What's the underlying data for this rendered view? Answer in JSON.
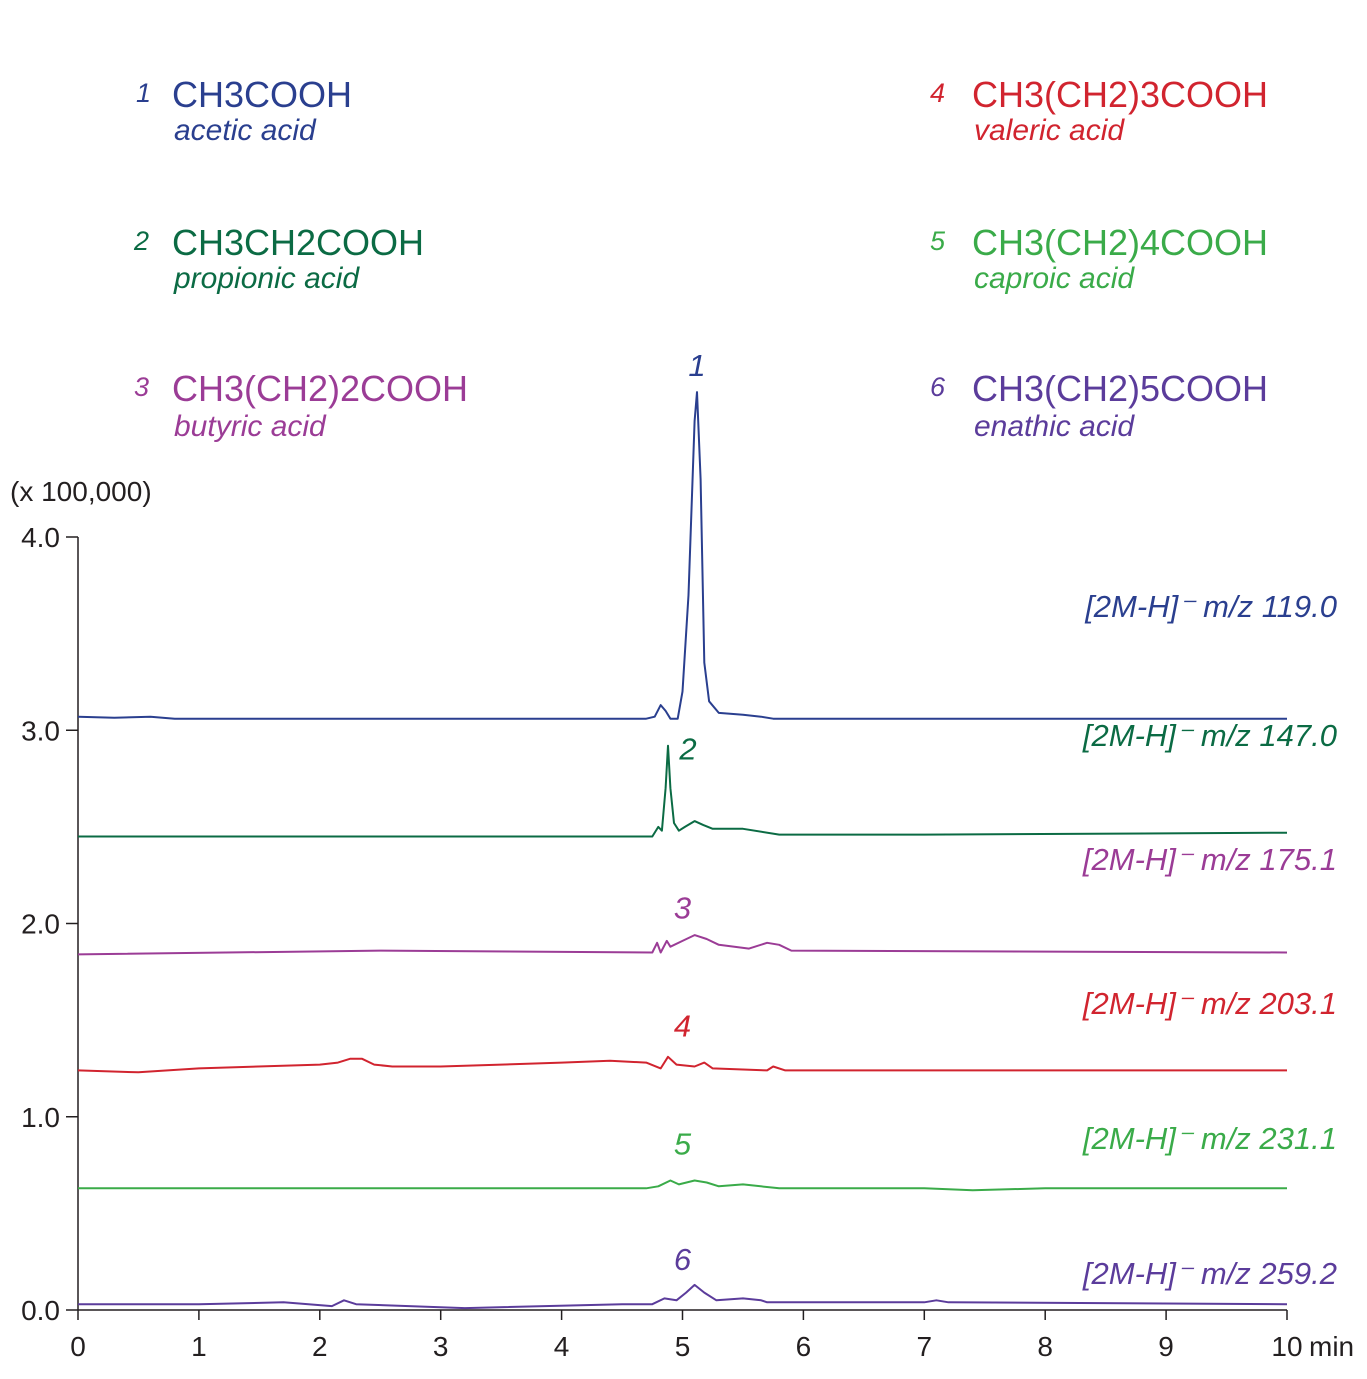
{
  "chart_data": {
    "type": "line",
    "y_unit_label": "(x 100,000)",
    "x_unit_label": "min",
    "xlim": [
      0,
      10
    ],
    "ylim": [
      0,
      4
    ],
    "x_ticks": [
      "0",
      "1",
      "2",
      "3",
      "4",
      "5",
      "6",
      "7",
      "8",
      "9",
      "10"
    ],
    "y_ticks": [
      "0.0",
      "1.0",
      "2.0",
      "3.0",
      "4.0"
    ],
    "grid": false,
    "series": [
      {
        "peak_label": "1",
        "formula": "CH3COOH",
        "name": "acetic acid",
        "ion_label": "[2M-H]⁻ m/z 119.0",
        "color": "#2a3f8f",
        "baseline": 3.06,
        "points": [
          [
            0,
            3.07
          ],
          [
            0.3,
            3.065
          ],
          [
            0.6,
            3.07
          ],
          [
            0.8,
            3.06
          ],
          [
            2,
            3.06
          ],
          [
            4.7,
            3.06
          ],
          [
            4.77,
            3.07
          ],
          [
            4.82,
            3.13
          ],
          [
            4.86,
            3.1
          ],
          [
            4.9,
            3.06
          ],
          [
            4.96,
            3.06
          ],
          [
            5.0,
            3.2
          ],
          [
            5.05,
            3.7
          ],
          [
            5.1,
            4.6
          ],
          [
            5.12,
            4.75
          ],
          [
            5.15,
            4.3
          ],
          [
            5.18,
            3.35
          ],
          [
            5.22,
            3.15
          ],
          [
            5.3,
            3.09
          ],
          [
            5.5,
            3.08
          ],
          [
            5.65,
            3.07
          ],
          [
            5.75,
            3.06
          ],
          [
            10,
            3.06
          ]
        ]
      },
      {
        "peak_label": "2",
        "formula": "CH3CH2COOH",
        "name": "propionic acid",
        "ion_label": "[2M-H]⁻ m/z 147.0",
        "color": "#0b6b44",
        "baseline": 2.45,
        "points": [
          [
            0,
            2.45
          ],
          [
            4.75,
            2.45
          ],
          [
            4.8,
            2.5
          ],
          [
            4.83,
            2.48
          ],
          [
            4.86,
            2.7
          ],
          [
            4.88,
            2.92
          ],
          [
            4.9,
            2.7
          ],
          [
            4.93,
            2.52
          ],
          [
            4.97,
            2.48
          ],
          [
            5.02,
            2.5
          ],
          [
            5.1,
            2.53
          ],
          [
            5.17,
            2.51
          ],
          [
            5.25,
            2.49
          ],
          [
            5.5,
            2.49
          ],
          [
            5.8,
            2.46
          ],
          [
            7,
            2.46
          ],
          [
            10,
            2.47
          ]
        ]
      },
      {
        "peak_label": "3",
        "formula": "CH3(CH2)2COOH",
        "name": "butyric acid",
        "ion_label": "[2M-H]⁻ m/z 175.1",
        "color": "#9b3c96",
        "baseline": 1.85,
        "points": [
          [
            0,
            1.84
          ],
          [
            2.5,
            1.86
          ],
          [
            4.75,
            1.85
          ],
          [
            4.79,
            1.9
          ],
          [
            4.82,
            1.85
          ],
          [
            4.87,
            1.91
          ],
          [
            4.9,
            1.88
          ],
          [
            5.0,
            1.91
          ],
          [
            5.1,
            1.94
          ],
          [
            5.2,
            1.92
          ],
          [
            5.3,
            1.89
          ],
          [
            5.55,
            1.87
          ],
          [
            5.7,
            1.9
          ],
          [
            5.8,
            1.89
          ],
          [
            5.9,
            1.86
          ],
          [
            10,
            1.85
          ]
        ]
      },
      {
        "peak_label": "4",
        "formula": "CH3(CH2)3COOH",
        "name": "valeric acid",
        "ion_label": "[2M-H]⁻ m/z 203.1",
        "color": "#d1242f",
        "baseline": 1.24,
        "points": [
          [
            0,
            1.24
          ],
          [
            0.5,
            1.23
          ],
          [
            1.0,
            1.25
          ],
          [
            2.0,
            1.27
          ],
          [
            2.15,
            1.28
          ],
          [
            2.25,
            1.3
          ],
          [
            2.35,
            1.3
          ],
          [
            2.45,
            1.27
          ],
          [
            2.6,
            1.26
          ],
          [
            3.0,
            1.26
          ],
          [
            3.5,
            1.27
          ],
          [
            4.0,
            1.28
          ],
          [
            4.4,
            1.29
          ],
          [
            4.7,
            1.28
          ],
          [
            4.82,
            1.25
          ],
          [
            4.88,
            1.31
          ],
          [
            4.95,
            1.27
          ],
          [
            5.1,
            1.26
          ],
          [
            5.18,
            1.28
          ],
          [
            5.25,
            1.25
          ],
          [
            5.7,
            1.24
          ],
          [
            5.75,
            1.26
          ],
          [
            5.85,
            1.24
          ],
          [
            10,
            1.24
          ]
        ]
      },
      {
        "peak_label": "5",
        "formula": "CH3(CH2)4COOH",
        "name": "caproic acid",
        "ion_label": "[2M-H]⁻ m/z 231.1",
        "color": "#3aab49",
        "baseline": 0.63,
        "points": [
          [
            0,
            0.63
          ],
          [
            4.7,
            0.63
          ],
          [
            4.8,
            0.64
          ],
          [
            4.9,
            0.67
          ],
          [
            4.97,
            0.65
          ],
          [
            5.1,
            0.67
          ],
          [
            5.2,
            0.66
          ],
          [
            5.3,
            0.64
          ],
          [
            5.5,
            0.65
          ],
          [
            5.8,
            0.63
          ],
          [
            7.0,
            0.63
          ],
          [
            7.4,
            0.62
          ],
          [
            8,
            0.63
          ],
          [
            10,
            0.63
          ]
        ]
      },
      {
        "peak_label": "6",
        "formula": "CH3(CH2)5COOH",
        "name": "enathic acid",
        "ion_label": "[2M-H]⁻ m/z 259.2",
        "color": "#5b3c9b",
        "baseline": 0.03,
        "points": [
          [
            0,
            0.03
          ],
          [
            1.0,
            0.03
          ],
          [
            1.7,
            0.04
          ],
          [
            2.1,
            0.02
          ],
          [
            2.2,
            0.05
          ],
          [
            2.3,
            0.03
          ],
          [
            3.2,
            0.01
          ],
          [
            4.5,
            0.03
          ],
          [
            4.75,
            0.03
          ],
          [
            4.85,
            0.06
          ],
          [
            4.95,
            0.05
          ],
          [
            5.03,
            0.09
          ],
          [
            5.1,
            0.13
          ],
          [
            5.18,
            0.09
          ],
          [
            5.28,
            0.05
          ],
          [
            5.5,
            0.06
          ],
          [
            5.65,
            0.05
          ],
          [
            5.7,
            0.04
          ],
          [
            7.0,
            0.04
          ],
          [
            7.1,
            0.05
          ],
          [
            7.2,
            0.04
          ],
          [
            10,
            0.03
          ]
        ]
      }
    ]
  }
}
